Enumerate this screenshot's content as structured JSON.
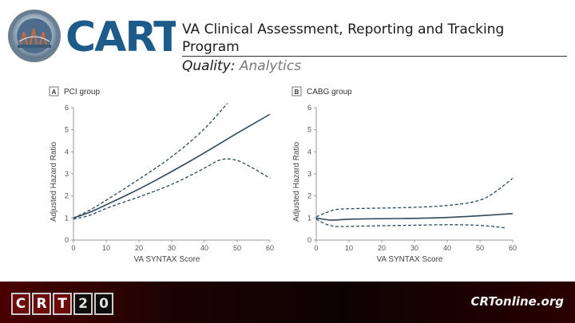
{
  "logo": {
    "word": "CART"
  },
  "header": {
    "title": "VA Clinical Assessment, Reporting and Tracking Program",
    "title_line1": "VA Clinical Assessment, Reporting and Tracking",
    "title_line2": "Program",
    "subtitle_prefix": "Quality:",
    "subtitle_accent": "Analytics"
  },
  "chart_data": [
    {
      "type": "line",
      "panel": "A",
      "title": "PCI group",
      "xlabel": "VA SYNTAX Score",
      "ylabel": "Adjusted Hazard Ratio",
      "xlim": [
        0,
        60
      ],
      "ylim": [
        0,
        6
      ],
      "xticks": [
        "0",
        "10",
        "20",
        "30",
        "40",
        "50",
        "60"
      ],
      "yticks": [
        "0",
        "1",
        "2",
        "3",
        "4",
        "5",
        "6"
      ],
      "series": [
        {
          "style": "solid",
          "x": [
            0,
            5,
            10,
            20,
            30,
            40,
            50,
            60
          ],
          "y": [
            1.0,
            1.25,
            1.6,
            2.3,
            3.1,
            3.95,
            4.85,
            5.7
          ]
        },
        {
          "style": "dashed",
          "x": [
            0,
            5,
            10,
            20,
            30,
            40,
            47
          ],
          "y": [
            1.0,
            1.35,
            1.8,
            2.75,
            3.75,
            5.0,
            6.2
          ]
        },
        {
          "style": "dashed",
          "x": [
            0,
            5,
            10,
            20,
            30,
            40,
            45,
            50,
            55,
            60
          ],
          "y": [
            0.95,
            1.1,
            1.45,
            1.95,
            2.5,
            3.25,
            3.7,
            3.65,
            3.25,
            2.8
          ]
        }
      ]
    },
    {
      "type": "line",
      "panel": "B",
      "title": "CABG group",
      "xlabel": "VA SYNTAX Score",
      "ylabel": "Adjusted Hazard Ratio",
      "xlim": [
        0,
        60
      ],
      "ylim": [
        0,
        6
      ],
      "xticks": [
        "0",
        "10",
        "20",
        "30",
        "40",
        "50",
        "60"
      ],
      "yticks": [
        "0",
        "1",
        "2",
        "3",
        "4",
        "5",
        "6"
      ],
      "series": [
        {
          "style": "solid",
          "x": [
            0,
            3,
            5,
            10,
            20,
            30,
            40,
            50,
            60
          ],
          "y": [
            1.0,
            0.92,
            0.9,
            0.95,
            0.97,
            0.98,
            1.02,
            1.1,
            1.2
          ]
        },
        {
          "style": "dashed",
          "x": [
            0,
            3,
            6,
            10,
            20,
            30,
            40,
            50,
            55,
            60
          ],
          "y": [
            1.05,
            1.25,
            1.4,
            1.42,
            1.45,
            1.48,
            1.55,
            1.75,
            2.2,
            2.8
          ]
        },
        {
          "style": "dashed",
          "x": [
            0,
            3,
            6,
            10,
            20,
            30,
            40,
            50,
            58
          ],
          "y": [
            0.95,
            0.7,
            0.6,
            0.62,
            0.65,
            0.67,
            0.7,
            0.68,
            0.55
          ]
        }
      ]
    }
  ],
  "footer": {
    "crt20": [
      "C",
      "R",
      "T",
      "2",
      "0"
    ],
    "site": "CRTonline.org"
  },
  "colors": {
    "line": "#2e4a5c",
    "footer_bg": "#1c0303",
    "brand_blue": "#1d5c8a"
  }
}
